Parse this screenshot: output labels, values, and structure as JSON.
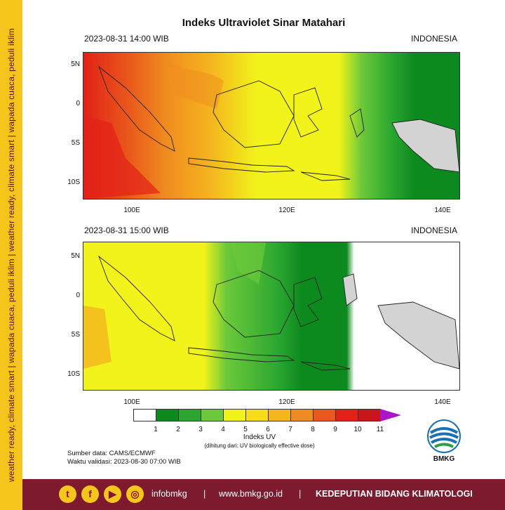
{
  "side_banner": "weather ready, climate smart | wapada cuaca, peduli iklim | weather ready, climate smart | wapada cuaca, peduli iklim",
  "title": "Indeks Ultraviolet Sinar Matahari",
  "panels": [
    {
      "datetime": "2023-08-31  14:00 WIB",
      "region": "INDONESIA",
      "zones": {
        "red_until_lon": 102,
        "orange_until_lon": 108,
        "yellow_until_lon": 124,
        "light_green_until_lon": 130,
        "dark_green_until_lon": 140
      }
    },
    {
      "datetime": "2023-08-31  15:00 WIB",
      "region": "INDONESIA",
      "zones": {
        "yellow_until_lon": 110,
        "light_green_until_lon": 115,
        "green_until_lon": 124,
        "white_from_lon": 126
      }
    }
  ],
  "lat_ticks": [
    "5N",
    "0",
    "5S",
    "10S"
  ],
  "lon_ticks": [
    "100E",
    "120E",
    "140E"
  ],
  "colorbar": {
    "labels": [
      "1",
      "2",
      "3",
      "4",
      "5",
      "6",
      "7",
      "8",
      "9",
      "10",
      "11"
    ],
    "colors": [
      "#ffffff",
      "#0d8a1e",
      "#2aa630",
      "#6cc93a",
      "#f1f31a",
      "#f6dc1a",
      "#f5b51e",
      "#ef8c1f",
      "#e9581c",
      "#e22118",
      "#c8161a",
      "#a817c8"
    ],
    "title": "Indeks UV",
    "note": "(dihitung dari: UV biologically effective dose)"
  },
  "source_line": "Sumber data: CAMS/ECMWF",
  "validation_line": "Waktu validasi: 2023-08-30 07:00 WIB",
  "logo_text": "BMKG",
  "footer": {
    "handle": "infobmkg",
    "separator": "|",
    "website": "www.bmkg.go.id",
    "department": "KEDEPUTIAN BIDANG KLIMATOLOGI",
    "icons": [
      "twitter-icon",
      "facebook-icon",
      "youtube-icon",
      "instagram-icon"
    ]
  }
}
